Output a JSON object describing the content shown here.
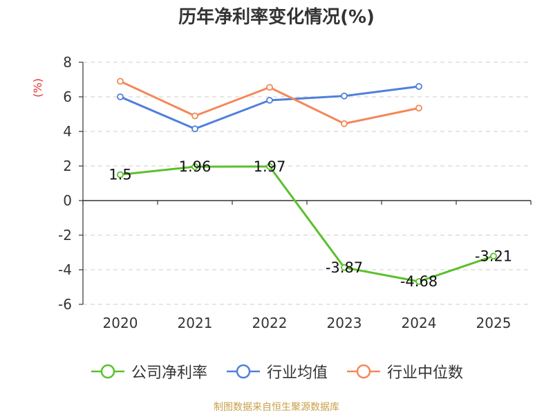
{
  "chart_data": {
    "type": "line",
    "title": "历年净利率变化情况(%)",
    "ylabel": "(%)",
    "xlabel": "",
    "categories": [
      "2020",
      "2021",
      "2022",
      "2023",
      "2024",
      "2025"
    ],
    "ylim": [
      -6,
      8
    ],
    "yticks": [
      8,
      6,
      4,
      2,
      0,
      -2,
      -4,
      -6
    ],
    "grid": true,
    "legend_position": "bottom",
    "series": [
      {
        "name": "公司净利率",
        "color": "#5ac02a",
        "values": [
          1.5,
          1.96,
          1.97,
          -3.87,
          -4.68,
          -3.21
        ],
        "labels": [
          "1.5",
          "1.96",
          "1.97",
          "-3.87",
          "-4.68",
          "-3.21"
        ]
      },
      {
        "name": "行业均值",
        "color": "#4f7fdc",
        "values": [
          6.0,
          4.15,
          5.8,
          6.05,
          6.6,
          null
        ]
      },
      {
        "name": "行业中位数",
        "color": "#f4875a",
        "values": [
          6.9,
          4.9,
          6.55,
          4.45,
          5.35,
          null
        ]
      }
    ],
    "source": "制图数据来自恒生聚源数据库"
  }
}
